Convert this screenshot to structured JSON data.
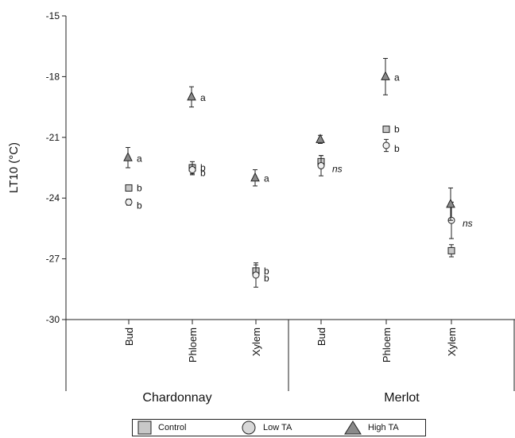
{
  "chart_data": {
    "type": "scatter",
    "ylabel": "LT10 (°C)",
    "ylim": [
      -30,
      -15
    ],
    "yticks": [
      "-15",
      "-18",
      "-21",
      "-24",
      "-27",
      "-30"
    ],
    "ytick_values": [
      -15,
      -18,
      -21,
      -24,
      -27,
      -30
    ],
    "groups": [
      {
        "name": "Chardonnay",
        "categories": [
          "Bud",
          "Phloem",
          "Xylem"
        ]
      },
      {
        "name": "Merlot",
        "categories": [
          "Bud",
          "Phloem",
          "Xylem"
        ]
      }
    ],
    "series": [
      {
        "name": "Control",
        "marker": "square",
        "fill": "#c8c8c8",
        "values": [
          -23.5,
          -22.5,
          -27.6,
          -22.2,
          -20.6,
          -26.6
        ],
        "errors": [
          0.0,
          0.3,
          0.3,
          0.3,
          0.0,
          0.3
        ]
      },
      {
        "name": "Low TA",
        "marker": "circle",
        "fill": "#f0f0f0",
        "values": [
          -24.2,
          -22.6,
          -27.8,
          -22.4,
          -21.4,
          -25.1
        ],
        "errors": [
          0.15,
          0.25,
          0.6,
          0.5,
          0.3,
          0.9
        ]
      },
      {
        "name": "High TA",
        "marker": "triangle",
        "fill": "#8a8a8a",
        "values": [
          -22.0,
          -19.0,
          -23.0,
          -21.1,
          -18.0,
          -24.3
        ],
        "errors": [
          0.5,
          0.5,
          0.4,
          0.2,
          0.9,
          0.8
        ]
      }
    ],
    "annotations": [
      {
        "category_index": 0,
        "labels": [
          "a",
          "b",
          "b"
        ],
        "series_index": [
          2,
          0,
          1
        ]
      },
      {
        "category_index": 1,
        "labels": [
          "a",
          "b",
          "b"
        ],
        "series_index": [
          2,
          0,
          1
        ]
      },
      {
        "category_index": 2,
        "labels": [
          "a",
          "b",
          "b"
        ],
        "series_index": [
          2,
          0,
          1
        ]
      },
      {
        "category_index": 3,
        "labels": [
          "ns"
        ],
        "series_index": [
          1
        ]
      },
      {
        "category_index": 4,
        "labels": [
          "a",
          "b",
          "b"
        ],
        "series_index": [
          2,
          0,
          1
        ]
      },
      {
        "category_index": 5,
        "labels": [
          "ns"
        ],
        "series_index": [
          1
        ]
      }
    ],
    "legend_position": "bottom"
  },
  "legend": {
    "items": [
      {
        "label": "Control",
        "marker": "square"
      },
      {
        "label": "Low TA",
        "marker": "circle"
      },
      {
        "label": "High TA",
        "marker": "triangle"
      }
    ]
  }
}
